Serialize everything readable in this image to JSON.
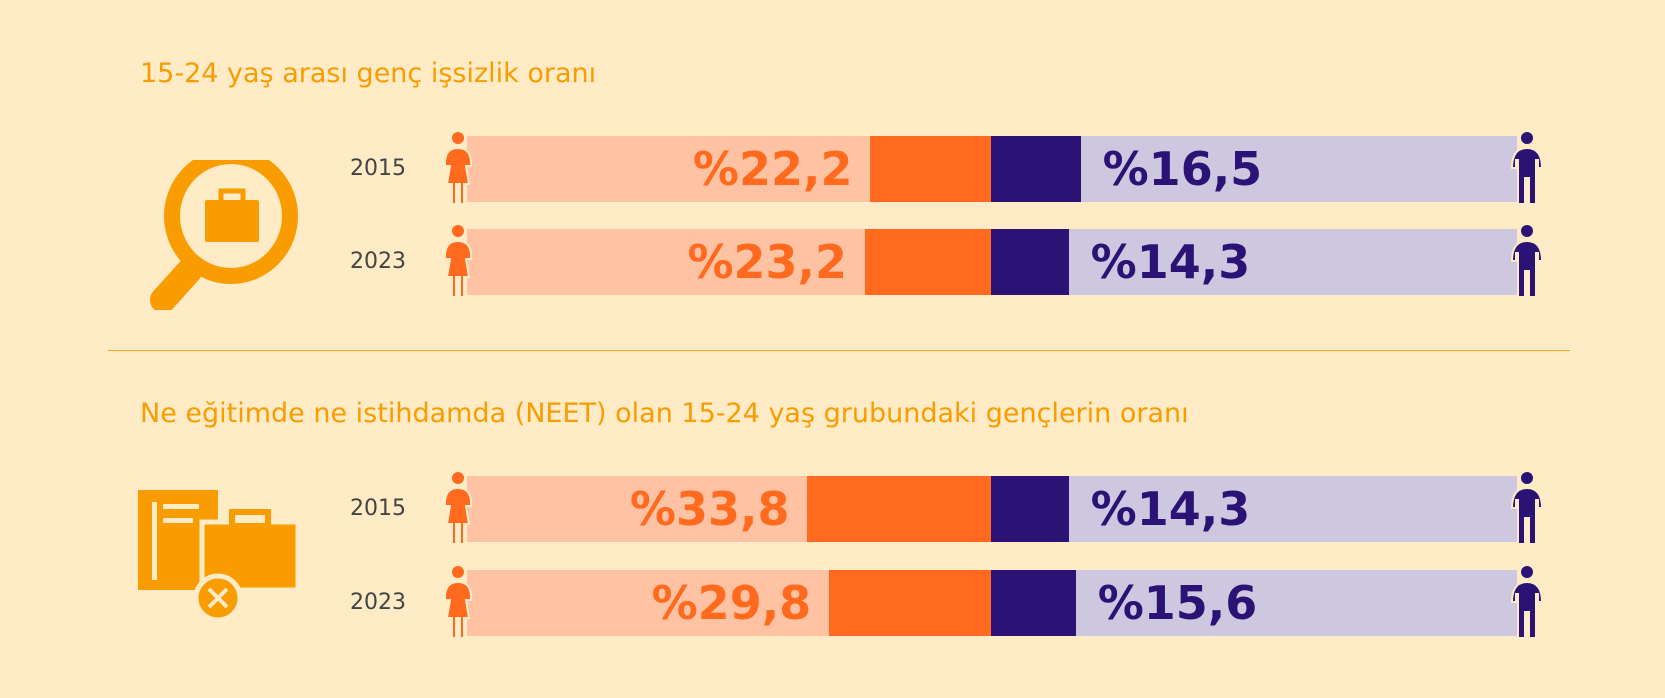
{
  "colors": {
    "women_light": "#FFC3A3",
    "women": "#FF6A1F",
    "men": "#2B1275",
    "men_light": "#CDC8E0",
    "title": "#F99C00"
  },
  "chart_data": [
    {
      "type": "bar",
      "title": "15-24 yaş arası genç işsizlik oranı",
      "icon": "magnifier-briefcase-icon",
      "categories": [
        "2015",
        "2023"
      ],
      "series": [
        {
          "name": "Kadın",
          "values": [
            22.2,
            23.2
          ],
          "labels": [
            "%22,2",
            "%23,2"
          ]
        },
        {
          "name": "Erkek",
          "values": [
            16.5,
            14.3
          ],
          "labels": [
            "%16,5",
            "%14,3"
          ]
        }
      ]
    },
    {
      "type": "bar",
      "title": "Ne eğitimde ne istihdamda (NEET) olan 15-24 yaş grubundaki gençlerin oranı",
      "icon": "documents-briefcase-x-icon",
      "categories": [
        "2015",
        "2023"
      ],
      "series": [
        {
          "name": "Kadın",
          "values": [
            33.8,
            29.8
          ],
          "labels": [
            "%33,8",
            "%29,8"
          ]
        },
        {
          "name": "Erkek",
          "values": [
            14.3,
            15.6
          ],
          "labels": [
            "%14,3",
            "%15,6"
          ]
        }
      ]
    }
  ]
}
